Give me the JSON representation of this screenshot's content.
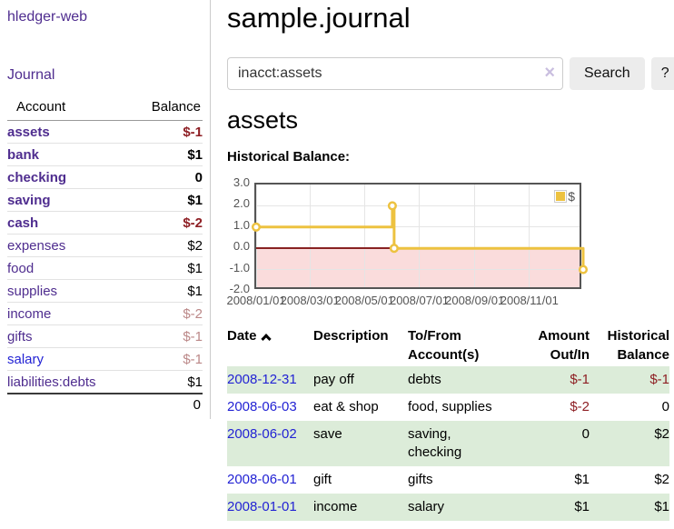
{
  "app": {
    "title": "hledger-web"
  },
  "theme": {
    "purple": "#4f2d8f",
    "blue": "#2323d4",
    "negstrong": "#8e1f24",
    "negsoft": "#bb8888",
    "green": "#dcecd9",
    "yellow": "#edc240",
    "pink": "#fadcdc",
    "zero": "#882222",
    "grid": "#e5e5e5",
    "axis": "#545454",
    "chartborder": "#555555"
  },
  "sidebar": {
    "nav": {
      "journal": "Journal"
    },
    "accounts_table": {
      "headers": {
        "account": "Account",
        "balance": "Balance"
      },
      "rows": [
        {
          "name": "assets",
          "balance": "$-1",
          "indent": 1,
          "bold": true,
          "link": "purple",
          "style": "neg-strong"
        },
        {
          "name": "bank",
          "balance": "$1",
          "indent": 2,
          "bold": true,
          "link": "purple",
          "style": ""
        },
        {
          "name": "checking",
          "balance": "0",
          "indent": 3,
          "bold": true,
          "link": "purple",
          "style": ""
        },
        {
          "name": "saving",
          "balance": "$1",
          "indent": 3,
          "bold": true,
          "link": "purple",
          "style": ""
        },
        {
          "name": "cash",
          "balance": "$-2",
          "indent": 2,
          "bold": true,
          "link": "purple",
          "style": "neg-strong"
        },
        {
          "name": "expenses",
          "balance": "$2",
          "indent": 1,
          "bold": false,
          "link": "purple",
          "style": ""
        },
        {
          "name": "food",
          "balance": "$1",
          "indent": 2,
          "bold": false,
          "link": "purple",
          "style": ""
        },
        {
          "name": "supplies",
          "balance": "$1",
          "indent": 2,
          "bold": false,
          "link": "purple",
          "style": ""
        },
        {
          "name": "income",
          "balance": "$-2",
          "indent": 1,
          "bold": false,
          "link": "purple",
          "style": "neg-soft"
        },
        {
          "name": "gifts",
          "balance": "$-1",
          "indent": 2,
          "bold": false,
          "link": "purple",
          "style": "neg-soft"
        },
        {
          "name": "salary",
          "balance": "$-1",
          "indent": 2,
          "bold": false,
          "link": "blue",
          "style": "neg-soft"
        },
        {
          "name": "liabilities:debts",
          "balance": "$1",
          "indent": 1,
          "bold": false,
          "link": "purple",
          "style": ""
        }
      ],
      "total": "0"
    }
  },
  "header": {
    "title": "sample.journal"
  },
  "search": {
    "value": "inacct:assets",
    "clear_icon": "×",
    "button": "Search",
    "help_button": "?"
  },
  "main": {
    "account_heading": "assets",
    "chart_label": "Historical Balance:"
  },
  "chart_data": {
    "type": "line",
    "mode": "step-after",
    "title": "Historical Balance:",
    "series": [
      {
        "name": "$",
        "color": "#edc240",
        "points": [
          [
            "2008-01-01",
            1
          ],
          [
            "2008-06-01",
            2
          ],
          [
            "2008-06-03",
            0
          ],
          [
            "2008-12-31",
            -1
          ]
        ]
      }
    ],
    "xlim": [
      "2008-01-01",
      "2008-12-31"
    ],
    "ylim": [
      -2,
      3
    ],
    "x_ticks": [
      "2008/01/01",
      "2008/03/01",
      "2008/05/01",
      "2008/07/01",
      "2008/09/01",
      "2008/11/01"
    ],
    "y_ticks": [
      "3.0",
      "2.0",
      "1.0",
      "0.0",
      "-1.0",
      "-2.0"
    ],
    "grid": true,
    "legend_position": "top-right",
    "negative_region_shaded": true
  },
  "register_table": {
    "headers": {
      "date": {
        "l1": "Date",
        "l2": ""
      },
      "description": {
        "l1": "Description",
        "l2": ""
      },
      "accounts": {
        "l1": "To/From",
        "l2": "Account(s)"
      },
      "amount": {
        "l1": "Amount",
        "l2": "Out/In"
      },
      "balance": {
        "l1": "Historical",
        "l2": "Balance"
      }
    },
    "rows": [
      {
        "date": "2008-12-31",
        "description": "pay off",
        "accounts": "debts",
        "amount": "$-1",
        "amount_neg": true,
        "balance": "$-1",
        "balance_neg": true
      },
      {
        "date": "2008-06-03",
        "description": "eat & shop",
        "accounts": "food, supplies",
        "amount": "$-2",
        "amount_neg": true,
        "balance": "0",
        "balance_neg": false
      },
      {
        "date": "2008-06-02",
        "description": "save",
        "accounts": "saving, checking",
        "amount": "0",
        "amount_neg": false,
        "balance": "$2",
        "balance_neg": false
      },
      {
        "date": "2008-06-01",
        "description": "gift",
        "accounts": "gifts",
        "amount": "$1",
        "amount_neg": false,
        "balance": "$2",
        "balance_neg": false
      },
      {
        "date": "2008-01-01",
        "description": "income",
        "accounts": "salary",
        "amount": "$1",
        "amount_neg": false,
        "balance": "$1",
        "balance_neg": false
      }
    ]
  }
}
